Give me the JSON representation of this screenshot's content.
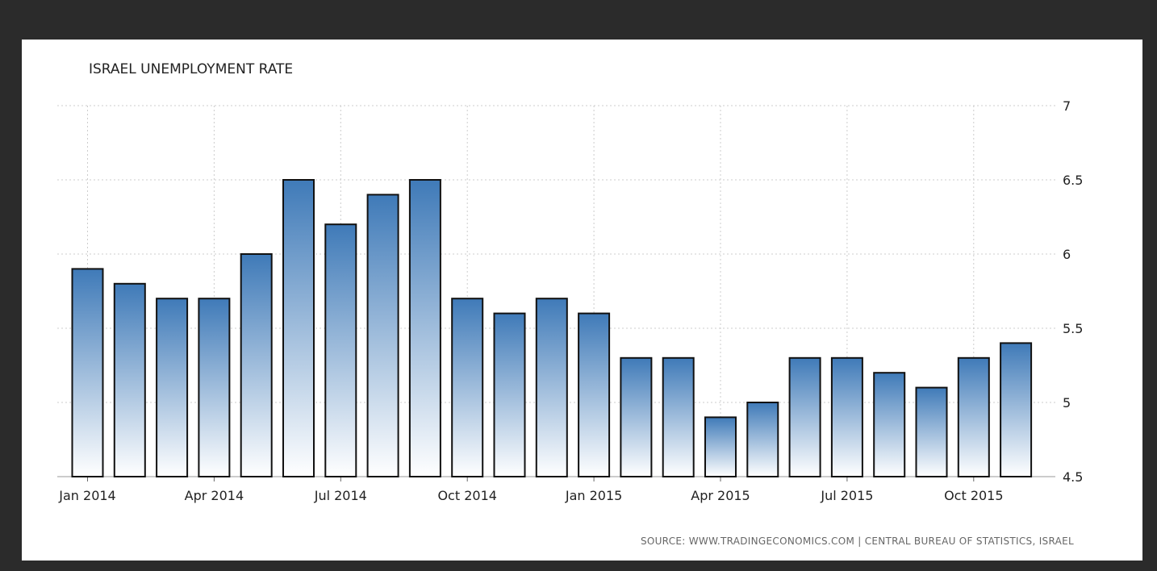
{
  "chart_data": {
    "type": "bar",
    "title": "ISRAEL UNEMPLOYMENT RATE",
    "source": "SOURCE: WWW.TRADINGECONOMICS.COM | CENTRAL BUREAU OF STATISTICS, ISRAEL",
    "categories": [
      "Jan 2014",
      "Feb 2014",
      "Mar 2014",
      "Apr 2014",
      "May 2014",
      "Jun 2014",
      "Jul 2014",
      "Aug 2014",
      "Sep 2014",
      "Oct 2014",
      "Nov 2014",
      "Dec 2014",
      "Jan 2015",
      "Feb 2015",
      "Mar 2015",
      "Apr 2015",
      "May 2015",
      "Jun 2015",
      "Jul 2015",
      "Aug 2015",
      "Sep 2015",
      "Oct 2015",
      "Nov 2015"
    ],
    "values": [
      5.9,
      5.8,
      5.7,
      5.7,
      6.0,
      6.5,
      6.2,
      6.4,
      6.5,
      5.7,
      5.6,
      5.7,
      5.6,
      5.3,
      5.3,
      4.9,
      5.0,
      5.3,
      5.3,
      5.2,
      5.1,
      5.3,
      5.4
    ],
    "x_tick_labels": [
      "Jan 2014",
      "Apr 2014",
      "Jul 2014",
      "Oct 2014",
      "Jan 2015",
      "Apr 2015",
      "Jul 2015",
      "Oct 2015"
    ],
    "y_ticks": [
      "7",
      "6.5",
      "6",
      "5.5",
      "5",
      "4.5"
    ],
    "ylim": [
      4.5,
      7
    ],
    "grid": true,
    "y_axis_position": "right",
    "colors": {
      "bar_top": "#3f7ab8",
      "bar_bottom": "#ffffff",
      "bar_border": "#111111",
      "grid": "#cccccc"
    }
  }
}
